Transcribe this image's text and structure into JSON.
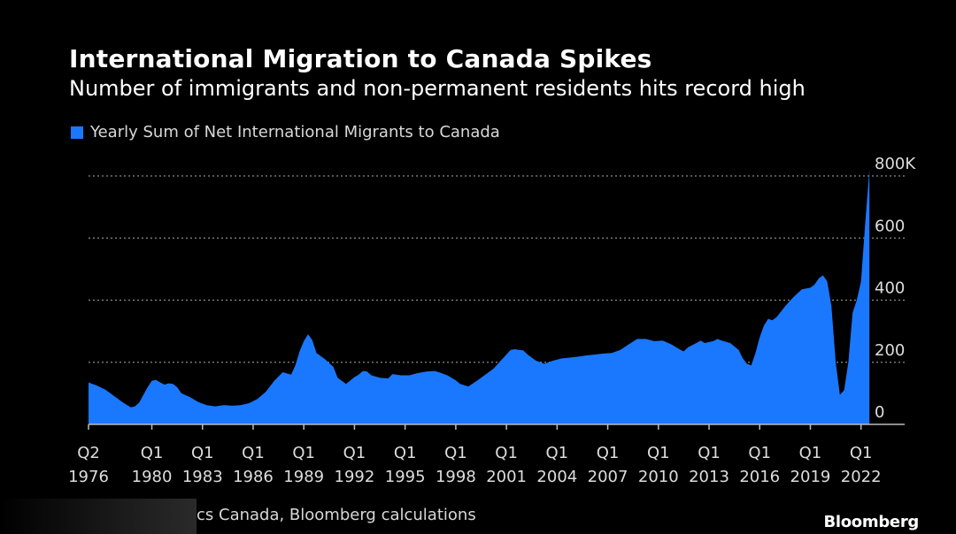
{
  "header": {
    "title": "International Migration to Canada Spikes",
    "subtitle": "Number of immigrants and non-permanent residents hits record high"
  },
  "footer": {
    "source": "cs Canada, Bloomberg calculations",
    "brand": "Bloomberg"
  },
  "colors": {
    "series": "#1a78ff",
    "grid": "#8a8a8a",
    "axis": "#bbbbbb",
    "text": "#dddddd"
  },
  "chart_data": {
    "type": "area",
    "title": "International Migration to Canada Spikes",
    "subtitle": "Number of immigrants and non-permanent residents hits record high",
    "legend": [
      "Yearly Sum of Net International Migrants to Canada"
    ],
    "legend_position": "top-left",
    "y_axis_side": "right",
    "ylim": [
      0,
      800
    ],
    "y_ticks": [
      0,
      200,
      400,
      600,
      800
    ],
    "y_tick_labels": [
      "0",
      "200",
      "400",
      "600",
      "800K"
    ],
    "xlim": [
      1976.25,
      2022.75
    ],
    "x_ticks": [
      {
        "x": 1976.25,
        "q": "Q2",
        "year": "1976"
      },
      {
        "x": 1980,
        "q": "Q1",
        "year": "1980"
      },
      {
        "x": 1983,
        "q": "Q1",
        "year": "1983"
      },
      {
        "x": 1986,
        "q": "Q1",
        "year": "1986"
      },
      {
        "x": 1989,
        "q": "Q1",
        "year": "1989"
      },
      {
        "x": 1992,
        "q": "Q1",
        "year": "1992"
      },
      {
        "x": 1995,
        "q": "Q1",
        "year": "1995"
      },
      {
        "x": 1998,
        "q": "Q1",
        "year": "1998"
      },
      {
        "x": 2001,
        "q": "Q1",
        "year": "2001"
      },
      {
        "x": 2004,
        "q": "Q1",
        "year": "2004"
      },
      {
        "x": 2007,
        "q": "Q1",
        "year": "2007"
      },
      {
        "x": 2010,
        "q": "Q1",
        "year": "2010"
      },
      {
        "x": 2013,
        "q": "Q1",
        "year": "2013"
      },
      {
        "x": 2016,
        "q": "Q1",
        "year": "2016"
      },
      {
        "x": 2019,
        "q": "Q1",
        "year": "2019"
      },
      {
        "x": 2022,
        "q": "Q1",
        "year": "2022"
      }
    ],
    "series": [
      {
        "name": "Yearly Sum of Net International Migrants to Canada",
        "unit": "thousands",
        "points": [
          [
            1976.25,
            135
          ],
          [
            1976.75,
            125
          ],
          [
            1977.25,
            112
          ],
          [
            1977.75,
            92
          ],
          [
            1978.25,
            72
          ],
          [
            1978.75,
            55
          ],
          [
            1979.0,
            58
          ],
          [
            1979.25,
            70
          ],
          [
            1979.5,
            95
          ],
          [
            1979.75,
            120
          ],
          [
            1980.0,
            140
          ],
          [
            1980.25,
            143
          ],
          [
            1980.5,
            135
          ],
          [
            1980.75,
            128
          ],
          [
            1981.0,
            132
          ],
          [
            1981.25,
            130
          ],
          [
            1981.5,
            120
          ],
          [
            1981.75,
            100
          ],
          [
            1982.25,
            88
          ],
          [
            1982.75,
            72
          ],
          [
            1983.25,
            62
          ],
          [
            1983.75,
            58
          ],
          [
            1984.25,
            62
          ],
          [
            1984.75,
            60
          ],
          [
            1985.25,
            62
          ],
          [
            1985.75,
            68
          ],
          [
            1986.25,
            82
          ],
          [
            1986.75,
            105
          ],
          [
            1987.25,
            140
          ],
          [
            1987.75,
            168
          ],
          [
            1988.25,
            160
          ],
          [
            1988.5,
            190
          ],
          [
            1988.75,
            235
          ],
          [
            1989.0,
            268
          ],
          [
            1989.25,
            290
          ],
          [
            1989.5,
            272
          ],
          [
            1989.75,
            230
          ],
          [
            1990.25,
            210
          ],
          [
            1990.75,
            185
          ],
          [
            1991.0,
            150
          ],
          [
            1991.5,
            130
          ],
          [
            1992.0,
            152
          ],
          [
            1992.25,
            160
          ],
          [
            1992.5,
            172
          ],
          [
            1992.75,
            170
          ],
          [
            1993.0,
            158
          ],
          [
            1993.5,
            150
          ],
          [
            1994.0,
            148
          ],
          [
            1994.25,
            162
          ],
          [
            1994.75,
            158
          ],
          [
            1995.25,
            158
          ],
          [
            1995.75,
            165
          ],
          [
            1996.25,
            170
          ],
          [
            1996.75,
            172
          ],
          [
            1997.0,
            168
          ],
          [
            1997.5,
            158
          ],
          [
            1998.0,
            142
          ],
          [
            1998.25,
            130
          ],
          [
            1998.75,
            122
          ],
          [
            1999.25,
            140
          ],
          [
            1999.75,
            160
          ],
          [
            2000.25,
            180
          ],
          [
            2000.75,
            210
          ],
          [
            2001.25,
            240
          ],
          [
            2001.5,
            242
          ],
          [
            2001.75,
            240
          ],
          [
            2002.0,
            238
          ],
          [
            2002.25,
            225
          ],
          [
            2002.75,
            205
          ],
          [
            2003.25,
            195
          ],
          [
            2003.75,
            205
          ],
          [
            2004.25,
            212
          ],
          [
            2004.75,
            215
          ],
          [
            2005.25,
            218
          ],
          [
            2005.75,
            222
          ],
          [
            2006.25,
            225
          ],
          [
            2006.75,
            228
          ],
          [
            2007.25,
            230
          ],
          [
            2007.75,
            240
          ],
          [
            2008.25,
            258
          ],
          [
            2008.75,
            275
          ],
          [
            2009.25,
            275
          ],
          [
            2009.75,
            268
          ],
          [
            2010.25,
            270
          ],
          [
            2010.75,
            258
          ],
          [
            2011.25,
            242
          ],
          [
            2011.5,
            235
          ],
          [
            2011.75,
            248
          ],
          [
            2012.25,
            262
          ],
          [
            2012.5,
            270
          ],
          [
            2012.75,
            262
          ],
          [
            2013.25,
            268
          ],
          [
            2013.5,
            275
          ],
          [
            2013.75,
            270
          ],
          [
            2014.25,
            262
          ],
          [
            2014.75,
            240
          ],
          [
            2015.0,
            212
          ],
          [
            2015.25,
            195
          ],
          [
            2015.5,
            190
          ],
          [
            2015.75,
            230
          ],
          [
            2016.0,
            280
          ],
          [
            2016.25,
            318
          ],
          [
            2016.5,
            340
          ],
          [
            2016.75,
            335
          ],
          [
            2017.0,
            345
          ],
          [
            2017.5,
            380
          ],
          [
            2018.0,
            410
          ],
          [
            2018.5,
            435
          ],
          [
            2019.0,
            440
          ],
          [
            2019.25,
            450
          ],
          [
            2019.5,
            470
          ],
          [
            2019.75,
            480
          ],
          [
            2020.0,
            460
          ],
          [
            2020.25,
            380
          ],
          [
            2020.5,
            200
          ],
          [
            2020.75,
            95
          ],
          [
            2021.0,
            110
          ],
          [
            2021.25,
            200
          ],
          [
            2021.5,
            360
          ],
          [
            2021.75,
            400
          ],
          [
            2022.0,
            460
          ],
          [
            2022.25,
            650
          ],
          [
            2022.5,
            820
          ]
        ]
      }
    ]
  }
}
